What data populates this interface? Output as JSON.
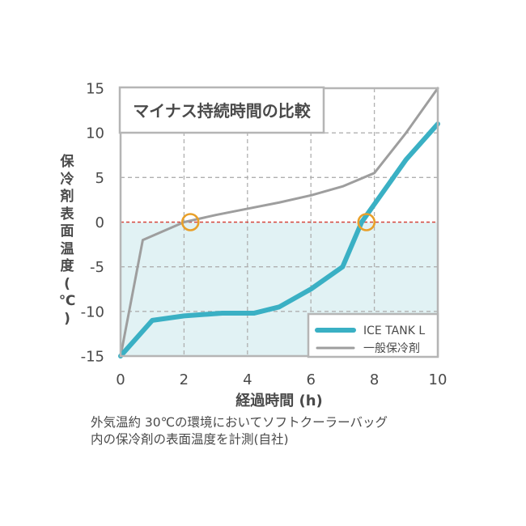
{
  "chart_data": {
    "type": "line",
    "title": "マイナス持続時間の比較",
    "xlabel": "経過時間 (h)",
    "ylabel": "保冷剤表面温度 (℃)",
    "ylabel_chars": [
      "保",
      "冷",
      "剤",
      "表",
      "面",
      "温",
      "度",
      "(",
      "℃",
      ")"
    ],
    "xlim": [
      0,
      10
    ],
    "ylim": [
      -15,
      15
    ],
    "xticks": [
      0,
      2,
      4,
      6,
      8,
      10
    ],
    "yticks": [
      15,
      10,
      5,
      0,
      -5,
      -10,
      -15
    ],
    "grid": true,
    "legend_position": "bottom-right",
    "threshold": 0,
    "series": [
      {
        "name": "ICE TANK L",
        "color": "#3ab0c4",
        "x": [
          0,
          1.0,
          2.0,
          3.2,
          4.2,
          5.0,
          6.0,
          7.0,
          7.6,
          8.0,
          9.0,
          10.0
        ],
        "y": [
          -15,
          -11,
          -10.5,
          -10.2,
          -10.2,
          -9.5,
          -7.5,
          -5.0,
          0,
          2,
          7,
          11
        ]
      },
      {
        "name": "一般保冷剤",
        "color": "#9e9e9e",
        "x": [
          0,
          0.7,
          2.0,
          3.0,
          4.0,
          5.0,
          6.0,
          7.0,
          8.0,
          9.0,
          10.0
        ],
        "y": [
          -15,
          -2,
          0,
          0.8,
          1.5,
          2.2,
          3.0,
          4.0,
          5.5,
          10,
          15
        ]
      }
    ],
    "markers": [
      {
        "x": 2.2,
        "y": 0,
        "color": "#e8a02a"
      },
      {
        "x": 7.75,
        "y": 0,
        "color": "#e8a02a"
      }
    ],
    "colors": {
      "below_zero_fill": "#e1f2f4",
      "zero_line": "#d6453a",
      "grid": "#b0b0b0",
      "border": "#b5b5b5",
      "axis_text": "#4a4a4a"
    }
  },
  "caption": {
    "line1": "外気温約 30℃の環境においてソフトクーラーバッグ",
    "line2": "内の保冷剤の表面温度を計測(自社)"
  }
}
